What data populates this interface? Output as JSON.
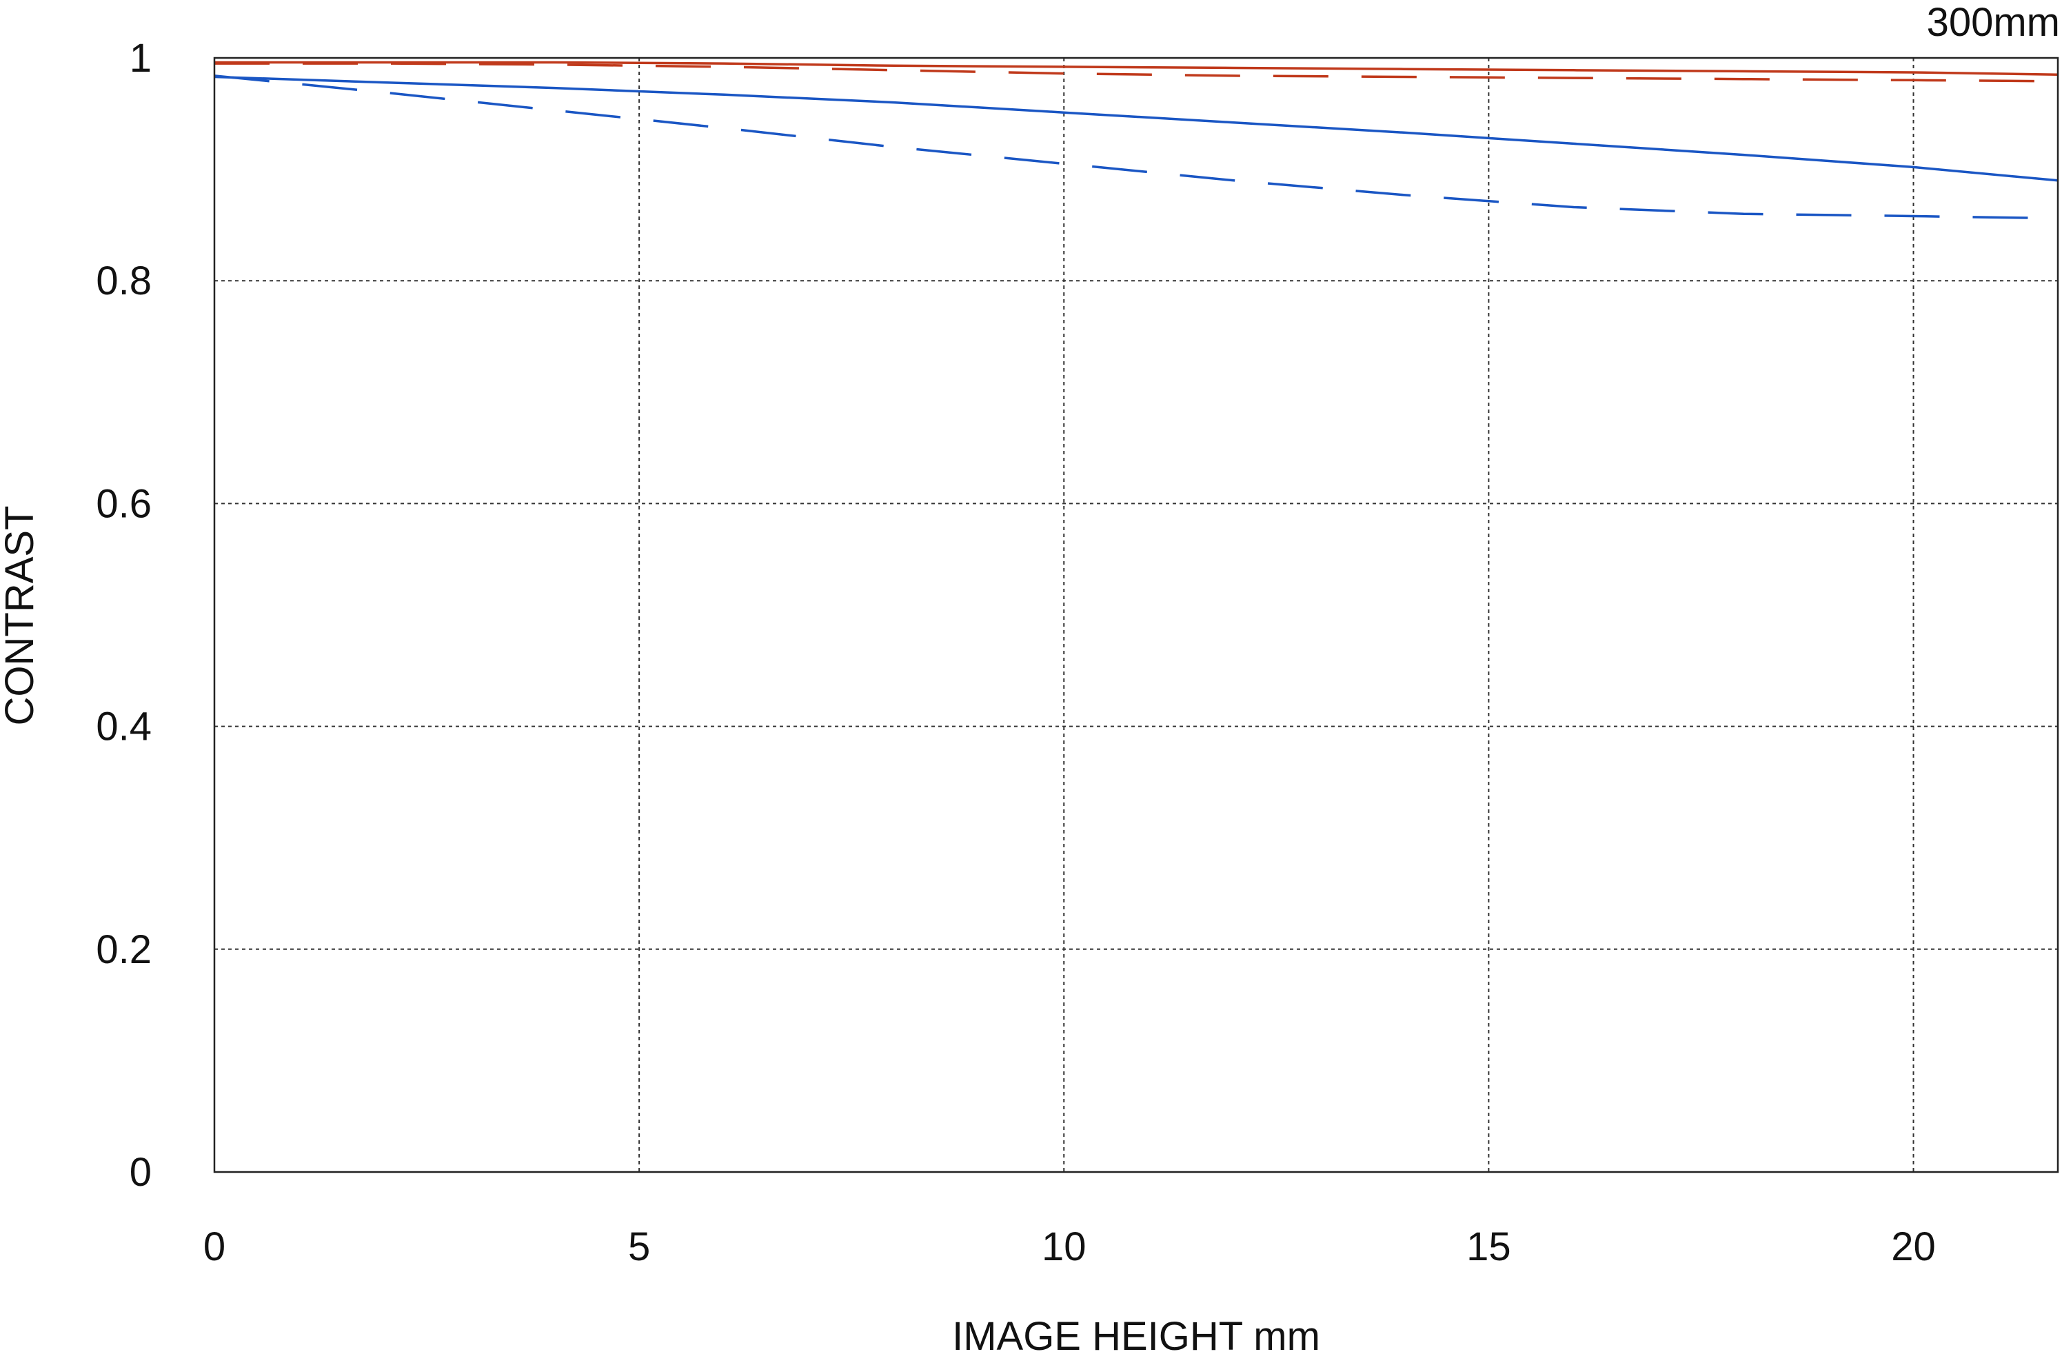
{
  "chart_data": {
    "type": "line",
    "focal_label": "300mm",
    "xlabel": "IMAGE HEIGHT  mm",
    "ylabel": "CONTRAST",
    "xlim": [
      0,
      21.7
    ],
    "ylim": [
      0,
      1
    ],
    "x_ticks": [
      0,
      5,
      10,
      15,
      20
    ],
    "x_tick_labels": [
      "0",
      "5",
      "10",
      "15",
      "20"
    ],
    "y_ticks": [
      0,
      0.2,
      0.4,
      0.6,
      0.8,
      1
    ],
    "y_tick_labels": [
      "0",
      "0.2",
      "0.4",
      "0.6",
      "0.8",
      "1"
    ],
    "grid": true,
    "legend": "none",
    "series": [
      {
        "color": "#c0391b",
        "style": "solid",
        "x": [
          0,
          2,
          4,
          6,
          8,
          10,
          12,
          14,
          16,
          18,
          20,
          21.7
        ],
        "y": [
          0.996,
          0.996,
          0.996,
          0.995,
          0.993,
          0.992,
          0.991,
          0.99,
          0.989,
          0.988,
          0.987,
          0.985
        ]
      },
      {
        "color": "#c0391b",
        "style": "dashed",
        "x": [
          0,
          2,
          4,
          6,
          8,
          10,
          12,
          14,
          16,
          18,
          20,
          21.7
        ],
        "y": [
          0.995,
          0.995,
          0.994,
          0.992,
          0.989,
          0.986,
          0.984,
          0.983,
          0.982,
          0.981,
          0.98,
          0.979
        ]
      },
      {
        "color": "#1a56c4",
        "style": "solid",
        "x": [
          0,
          2,
          4,
          6,
          8,
          10,
          12,
          14,
          16,
          18,
          20,
          21.7
        ],
        "y": [
          0.983,
          0.978,
          0.973,
          0.967,
          0.96,
          0.951,
          0.942,
          0.933,
          0.923,
          0.913,
          0.902,
          0.89
        ]
      },
      {
        "color": "#1a56c4",
        "style": "dashed",
        "x": [
          0,
          2,
          4,
          6,
          8,
          10,
          12,
          14,
          16,
          18,
          20,
          21.7
        ],
        "y": [
          0.984,
          0.969,
          0.953,
          0.937,
          0.92,
          0.905,
          0.89,
          0.877,
          0.866,
          0.86,
          0.858,
          0.856
        ]
      }
    ]
  }
}
